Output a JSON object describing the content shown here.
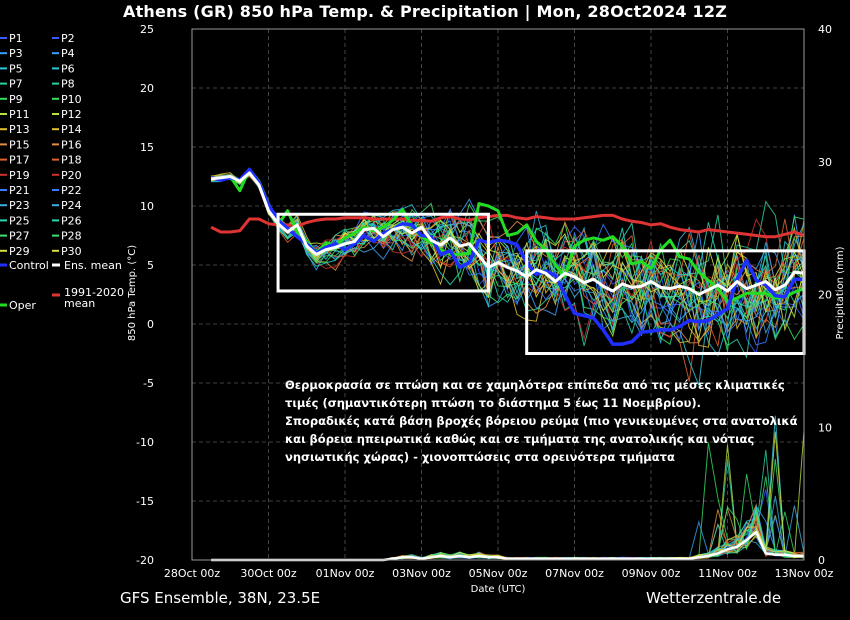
{
  "header": {
    "title": "Athens  (GR)  850 hPa Temp. & Precipitation | Mon, 28Oct2024 12Z"
  },
  "footer": {
    "left": "GFS Ensemble, 38N, 23.5E",
    "right": "Wetterzentrale.de"
  },
  "colors": {
    "background": "#000000",
    "grid": "#555555",
    "control": "#1f2fff",
    "oper": "#22dd22",
    "ens_mean": "#ffffff",
    "climate_mean": "#e03333",
    "highlight_box": "#ffffff"
  },
  "legend": {
    "items": [
      {
        "label": "P1",
        "color": "#3a5cff"
      },
      {
        "label": "P2",
        "color": "#3a5cff"
      },
      {
        "label": "P3",
        "color": "#3aa0ff"
      },
      {
        "label": "P4",
        "color": "#3aa0ff"
      },
      {
        "label": "P5",
        "color": "#2ac8d8"
      },
      {
        "label": "P6",
        "color": "#2ac8d8"
      },
      {
        "label": "P7",
        "color": "#2ad0a0"
      },
      {
        "label": "P8",
        "color": "#2ad0a0"
      },
      {
        "label": "P9",
        "color": "#33e060"
      },
      {
        "label": "P10",
        "color": "#33e060"
      },
      {
        "label": "P11",
        "color": "#b8e040"
      },
      {
        "label": "P12",
        "color": "#b8e040"
      },
      {
        "label": "P13",
        "color": "#e0c030"
      },
      {
        "label": "P14",
        "color": "#e0c030"
      },
      {
        "label": "P15",
        "color": "#e09040"
      },
      {
        "label": "P16",
        "color": "#e09040"
      },
      {
        "label": "P17",
        "color": "#e06030"
      },
      {
        "label": "P18",
        "color": "#e06030"
      },
      {
        "label": "P19",
        "color": "#d03030"
      },
      {
        "label": "P20",
        "color": "#d03030"
      },
      {
        "label": "P21",
        "color": "#3a7cff"
      },
      {
        "label": "P22",
        "color": "#3a7cff"
      },
      {
        "label": "P23",
        "color": "#3ab0e0"
      },
      {
        "label": "P24",
        "color": "#3ab0e0"
      },
      {
        "label": "P25",
        "color": "#2ad8b8"
      },
      {
        "label": "P26",
        "color": "#2ad8b8"
      },
      {
        "label": "P27",
        "color": "#40e070"
      },
      {
        "label": "P28",
        "color": "#40e070"
      },
      {
        "label": "P29",
        "color": "#d8e040"
      },
      {
        "label": "P30",
        "color": "#d8e040"
      }
    ],
    "control_label": "Control",
    "ens_mean_label": "Ens. mean",
    "climate_label_1": "1991-2020",
    "climate_label_2": "mean",
    "oper_label": "Oper"
  },
  "annotation": {
    "lines": [
      "Θερμοκρασία σε πτώση και σε χαμηλότερα επίπεδα από τις μέσες κλιματικές",
      "τιμές (σημαντικότερη πτώση το διάστημα 5 έως 11 Νοεμβρίου).",
      "Σποραδικές κατά βάση βροχές βόρειου ρεύμα (πιο γενικευμένες στα ανατολικά",
      "και βόρεια ηπειρωτικά καθώς και σε τμήματα της ανατολικής και νότιας",
      "νησιωτικής χώρας) - χιονοπτώσεις στα ορεινότερα τμήματα"
    ]
  },
  "chart_data": {
    "type": "line",
    "title": "Athens  (GR)  850 hPa Temp. & Precipitation | Mon, 28Oct2024 12Z",
    "xlabel": "Date (UTC)",
    "ylabel": "850 hPa Temp. (°C)",
    "y2label": "Precipitation (mm)",
    "ylim": [
      -20,
      25
    ],
    "y2lim": [
      0,
      40
    ],
    "xlim_days": [
      0,
      16
    ],
    "x_ticks": [
      "28Oct 00z",
      "30Oct 00z",
      "01Nov 00z",
      "03Nov 00z",
      "05Nov 00z",
      "07Nov 00z",
      "09Nov 00z",
      "11Nov 00z",
      "13Nov 00z"
    ],
    "y_ticks": [
      "25",
      "20",
      "15",
      "10",
      "5",
      "0",
      "-5",
      "-10",
      "-15",
      "-20"
    ],
    "y2_ticks": [
      "40",
      "30",
      "20",
      "10",
      "0"
    ],
    "grid": true,
    "x_days": [
      0.5,
      0.75,
      1.0,
      1.25,
      1.5,
      1.75,
      2.0,
      2.25,
      2.5,
      2.75,
      3.0,
      3.25,
      3.5,
      3.75,
      4.0,
      4.25,
      4.5,
      4.75,
      5.0,
      5.25,
      5.5,
      5.75,
      6.0,
      6.25,
      6.5,
      6.75,
      7.0,
      7.25,
      7.5,
      7.75,
      8.0,
      8.25,
      8.5,
      8.75,
      9.0,
      9.25,
      9.5,
      9.75,
      10.0,
      10.25,
      10.5,
      10.75,
      11.0,
      11.25,
      11.5,
      11.75,
      12.0,
      12.25,
      12.5,
      12.75,
      13.0,
      13.25,
      13.5,
      13.75,
      14.0,
      14.25,
      14.5,
      14.75,
      15.0,
      15.25,
      15.5,
      15.75,
      16.0
    ],
    "climate_mean": [
      8.2,
      7.8,
      7.8,
      7.9,
      8.9,
      8.9,
      8.5,
      8.4,
      8.4,
      8.3,
      8.6,
      8.8,
      8.9,
      8.9,
      9.0,
      9.0,
      9.0,
      8.9,
      8.9,
      8.9,
      8.9,
      8.8,
      8.8,
      8.7,
      9.0,
      9.1,
      8.9,
      8.8,
      9.0,
      9.1,
      9.2,
      9.2,
      9.0,
      8.9,
      9.1,
      9.0,
      8.9,
      8.9,
      8.9,
      9.0,
      9.1,
      9.2,
      9.2,
      8.9,
      8.7,
      8.6,
      8.4,
      8.5,
      8.2,
      8.0,
      7.9,
      7.8,
      8.0,
      7.9,
      7.8,
      7.7,
      7.6,
      7.5,
      7.4,
      7.4,
      7.6,
      7.8,
      7.5
    ],
    "ens_mean": [
      12.3,
      12.4,
      12.5,
      12.1,
      12.8,
      11.8,
      9.6,
      8.5,
      7.8,
      8.4,
      6.6,
      5.9,
      6.3,
      6.5,
      6.8,
      7.0,
      8.0,
      8.1,
      7.4,
      8.0,
      8.2,
      7.7,
      8.2,
      7.1,
      6.7,
      7.3,
      6.6,
      6.8,
      5.8,
      4.8,
      5.2,
      4.8,
      4.5,
      4.0,
      4.6,
      4.3,
      3.6,
      4.3,
      4.0,
      3.5,
      3.8,
      3.2,
      2.8,
      3.4,
      3.1,
      3.2,
      3.6,
      3.1,
      3.0,
      3.2,
      3.0,
      2.5,
      2.9,
      3.3,
      2.8,
      3.6,
      3.0,
      3.3,
      3.6,
      2.9,
      3.3,
      4.4,
      4.3
    ],
    "control": [
      12.4,
      12.2,
      12.4,
      12.2,
      13.1,
      12.0,
      10.1,
      8.8,
      8.1,
      7.4,
      6.8,
      6.0,
      6.5,
      6.8,
      6.3,
      6.8,
      7.5,
      7.0,
      7.7,
      8.0,
      8.5,
      8.4,
      7.5,
      7.4,
      5.9,
      6.2,
      4.8,
      5.2,
      7.1,
      6.9,
      7.1,
      7.0,
      6.7,
      5.2,
      4.2,
      4.5,
      4.1,
      2.5,
      0.9,
      0.7,
      0.5,
      -0.5,
      -1.7,
      -1.7,
      -1.5,
      -0.7,
      -0.6,
      -0.5,
      -0.5,
      -0.2,
      0.3,
      0.2,
      0.3,
      0.8,
      1.3,
      3.8,
      5.4,
      3.7,
      3.3,
      2.4,
      2.3,
      3.8,
      3.8
    ],
    "oper": [
      12.3,
      12.4,
      12.5,
      11.3,
      13.1,
      12.1,
      10.2,
      8.4,
      9.6,
      7.8,
      7.0,
      6.0,
      6.9,
      6.7,
      7.3,
      7.7,
      8.2,
      7.9,
      8.2,
      8.8,
      9.7,
      8.3,
      7.4,
      6.9,
      6.3,
      5.9,
      5.9,
      6.0,
      10.2,
      10.0,
      9.6,
      7.5,
      7.7,
      8.4,
      7.0,
      6.3,
      5.0,
      4.0,
      6.6,
      7.1,
      7.3,
      7.1,
      7.4,
      6.6,
      5.1,
      5.3,
      4.7,
      6.3,
      7.1,
      5.7,
      5.5,
      4.4,
      3.7,
      3.0,
      1.9,
      2.2,
      2.6,
      2.6,
      2.6,
      2.2,
      2.3,
      2.7,
      3.0
    ],
    "ens_mean_precip": [
      0,
      0,
      0,
      0,
      0,
      0,
      0,
      0,
      0,
      0,
      0,
      0,
      0,
      0,
      0,
      0,
      0,
      0,
      0,
      0.1,
      0.2,
      0.2,
      0.1,
      0.2,
      0.3,
      0.2,
      0.3,
      0.2,
      0.3,
      0.2,
      0.2,
      0.1,
      0.1,
      0.1,
      0.1,
      0.1,
      0.1,
      0.1,
      0.1,
      0.1,
      0.1,
      0.1,
      0.1,
      0.1,
      0.1,
      0.1,
      0.1,
      0.1,
      0.1,
      0.1,
      0.1,
      0.2,
      0.3,
      0.5,
      0.8,
      1.0,
      1.5,
      2.1,
      0.5,
      0.4,
      0.4,
      0.3,
      0.3
    ],
    "highlight_boxes": [
      {
        "x_days": [
          2.25,
          7.75
        ],
        "y_c": [
          2.8,
          9.3
        ]
      },
      {
        "x_days": [
          8.75,
          16.0
        ],
        "y_c": [
          -2.5,
          6.2
        ]
      }
    ]
  }
}
